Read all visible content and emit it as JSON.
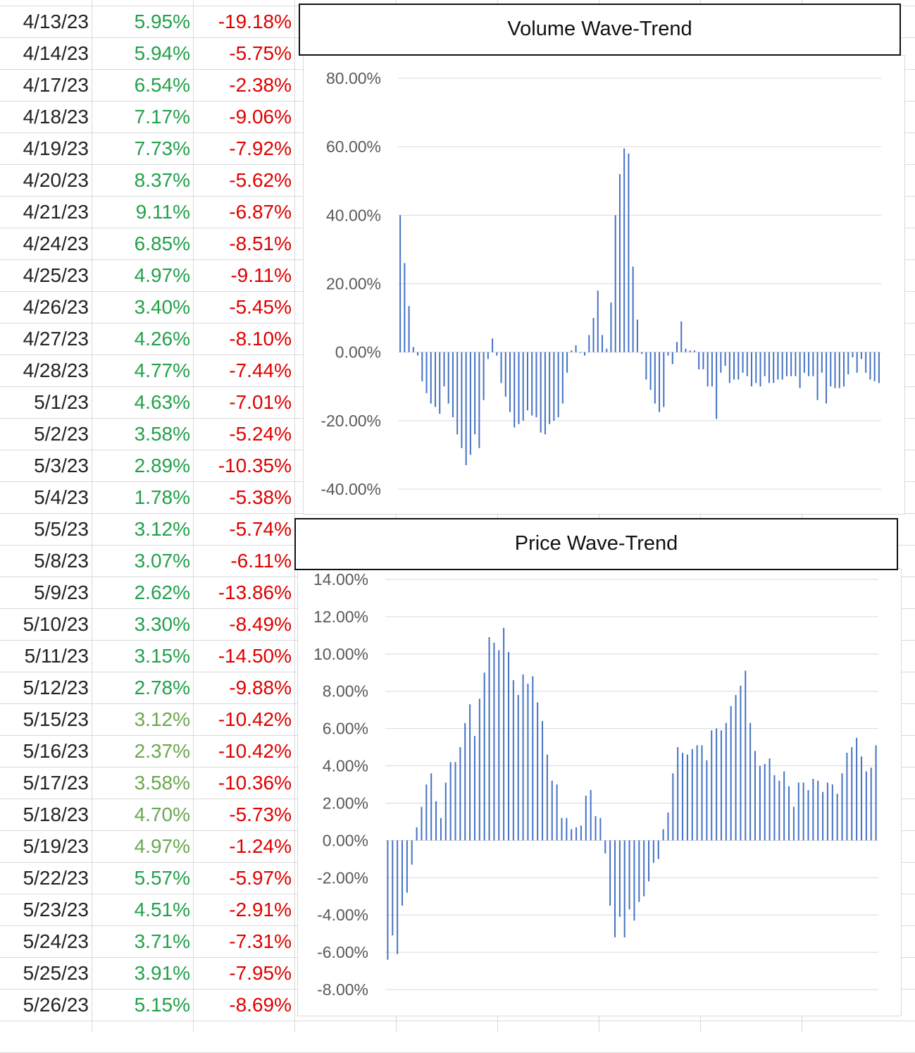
{
  "table": {
    "rows": [
      {
        "date": "4/13/23",
        "volume": "5.95%",
        "price": "-19.18%",
        "vol_color": "#22a14a"
      },
      {
        "date": "4/14/23",
        "volume": "5.94%",
        "price": "-5.75%",
        "vol_color": "#22a14a"
      },
      {
        "date": "4/17/23",
        "volume": "6.54%",
        "price": "-2.38%",
        "vol_color": "#22a14a"
      },
      {
        "date": "4/18/23",
        "volume": "7.17%",
        "price": "-9.06%",
        "vol_color": "#22a14a"
      },
      {
        "date": "4/19/23",
        "volume": "7.73%",
        "price": "-7.92%",
        "vol_color": "#22a14a"
      },
      {
        "date": "4/20/23",
        "volume": "8.37%",
        "price": "-5.62%",
        "vol_color": "#22a14a"
      },
      {
        "date": "4/21/23",
        "volume": "9.11%",
        "price": "-6.87%",
        "vol_color": "#22a14a"
      },
      {
        "date": "4/24/23",
        "volume": "6.85%",
        "price": "-8.51%",
        "vol_color": "#22a14a"
      },
      {
        "date": "4/25/23",
        "volume": "4.97%",
        "price": "-9.11%",
        "vol_color": "#22a14a"
      },
      {
        "date": "4/26/23",
        "volume": "3.40%",
        "price": "-5.45%",
        "vol_color": "#22a14a"
      },
      {
        "date": "4/27/23",
        "volume": "4.26%",
        "price": "-8.10%",
        "vol_color": "#22a14a"
      },
      {
        "date": "4/28/23",
        "volume": "4.77%",
        "price": "-7.44%",
        "vol_color": "#22a14a"
      },
      {
        "date": "5/1/23",
        "volume": "4.63%",
        "price": "-7.01%",
        "vol_color": "#22a14a"
      },
      {
        "date": "5/2/23",
        "volume": "3.58%",
        "price": "-5.24%",
        "vol_color": "#22a14a"
      },
      {
        "date": "5/3/23",
        "volume": "2.89%",
        "price": "-10.35%",
        "vol_color": "#22a14a"
      },
      {
        "date": "5/4/23",
        "volume": "1.78%",
        "price": "-5.38%",
        "vol_color": "#22a14a"
      },
      {
        "date": "5/5/23",
        "volume": "3.12%",
        "price": "-5.74%",
        "vol_color": "#22a14a"
      },
      {
        "date": "5/8/23",
        "volume": "3.07%",
        "price": "-6.11%",
        "vol_color": "#22a14a"
      },
      {
        "date": "5/9/23",
        "volume": "2.62%",
        "price": "-13.86%",
        "vol_color": "#22a14a"
      },
      {
        "date": "5/10/23",
        "volume": "3.30%",
        "price": "-8.49%",
        "vol_color": "#22a14a"
      },
      {
        "date": "5/11/23",
        "volume": "3.15%",
        "price": "-14.50%",
        "vol_color": "#22a14a"
      },
      {
        "date": "5/12/23",
        "volume": "2.78%",
        "price": "-9.88%",
        "vol_color": "#22a14a"
      },
      {
        "date": "5/15/23",
        "volume": "3.12%",
        "price": "-10.42%",
        "vol_color": "#6aa84f"
      },
      {
        "date": "5/16/23",
        "volume": "2.37%",
        "price": "-10.42%",
        "vol_color": "#6aa84f"
      },
      {
        "date": "5/17/23",
        "volume": "3.58%",
        "price": "-10.36%",
        "vol_color": "#6aa84f"
      },
      {
        "date": "5/18/23",
        "volume": "4.70%",
        "price": "-5.73%",
        "vol_color": "#6aa84f"
      },
      {
        "date": "5/19/23",
        "volume": "4.97%",
        "price": "-1.24%",
        "vol_color": "#6aa84f"
      },
      {
        "date": "5/22/23",
        "volume": "5.57%",
        "price": "-5.97%",
        "vol_color": "#22a14a"
      },
      {
        "date": "5/23/23",
        "volume": "4.51%",
        "price": "-2.91%",
        "vol_color": "#22a14a"
      },
      {
        "date": "5/24/23",
        "volume": "3.71%",
        "price": "-7.31%",
        "vol_color": "#22a14a"
      },
      {
        "date": "5/25/23",
        "volume": "3.91%",
        "price": "-7.95%",
        "vol_color": "#22a14a"
      },
      {
        "date": "5/26/23",
        "volume": "5.15%",
        "price": "-8.69%",
        "vol_color": "#22a14a"
      }
    ],
    "price_color": "#e00000"
  },
  "chart_data": [
    {
      "type": "bar",
      "title": "Volume Wave-Trend",
      "ylim": [
        -40,
        80
      ],
      "yticks": [
        "80.00%",
        "60.00%",
        "40.00%",
        "20.00%",
        "0.00%",
        "-20.00%",
        "-40.00%"
      ],
      "grid": true,
      "bar_color": "#4472c4",
      "series": [
        {
          "values": [
            40,
            26,
            13.5,
            1.5,
            -1,
            -8.5,
            -12,
            -15,
            -16,
            -18,
            -10,
            -15,
            -19,
            -24,
            -28,
            -33,
            -30,
            -24,
            -28,
            -14,
            -2,
            4,
            -1,
            -9,
            -13,
            -17.5,
            -22,
            -21,
            -20,
            -17,
            -18.5,
            -19,
            -23.5,
            -24,
            -21,
            -20,
            -19,
            -15,
            -6,
            0.5,
            2,
            0,
            -1,
            5,
            10,
            18,
            5,
            1,
            14.5,
            40,
            52,
            59.5,
            58,
            25,
            9.5,
            -0.5,
            -8,
            -11,
            -15,
            -17.5,
            -16,
            -1,
            -3.5,
            3,
            9,
            1,
            0.5,
            0.5,
            -5,
            -5,
            -10,
            -10,
            -19.5,
            -6,
            -4,
            -9,
            -8,
            -8,
            -6,
            -7,
            -10,
            -9,
            -10,
            -7,
            -9,
            -9,
            -8,
            -8,
            -7,
            -7,
            -7,
            -10.5,
            -6,
            -7,
            -7,
            -14,
            -6,
            -15,
            -10,
            -10.5,
            -10.5,
            -10,
            -6.5,
            -1.5,
            -6,
            -2,
            -6,
            -8,
            -8.5,
            -9
          ]
        }
      ]
    },
    {
      "type": "bar",
      "title": "Price Wave-Trend",
      "ylim": [
        -8,
        14
      ],
      "yticks": [
        "14.00%",
        "12.00%",
        "10.00%",
        "8.00%",
        "6.00%",
        "4.00%",
        "2.00%",
        "0.00%",
        "-2.00%",
        "-4.00%",
        "-6.00%",
        "-8.00%"
      ],
      "grid": true,
      "bar_color": "#4472c4",
      "series": [
        {
          "values": [
            -6.4,
            -5.1,
            -6.1,
            -3.5,
            -2.8,
            -1.3,
            0.7,
            1.8,
            3.0,
            3.6,
            2.1,
            1.2,
            3.1,
            4.2,
            4.2,
            5.0,
            6.3,
            7.3,
            5.6,
            7.6,
            9.0,
            10.9,
            10.6,
            10.2,
            11.4,
            10.1,
            8.6,
            7.8,
            8.9,
            8.4,
            8.8,
            7.4,
            6.4,
            4.6,
            3.2,
            3.0,
            1.2,
            1.2,
            0.6,
            0.7,
            0.8,
            2.4,
            2.7,
            1.3,
            1.2,
            -0.7,
            -3.5,
            -5.2,
            -4.1,
            -5.2,
            -3.7,
            -4.3,
            -3.3,
            -3.0,
            -2.2,
            -1.2,
            -1.0,
            0.6,
            1.5,
            3.6,
            5.0,
            4.7,
            4.6,
            4.9,
            5.1,
            5.1,
            4.3,
            5.9,
            6.0,
            5.9,
            6.3,
            7.2,
            7.8,
            8.3,
            9.1,
            6.3,
            4.8,
            4.0,
            4.1,
            4.4,
            3.5,
            3.2,
            3.7,
            2.9,
            1.8,
            3.1,
            3.1,
            2.7,
            3.3,
            3.2,
            2.6,
            3.1,
            3.0,
            2.5,
            3.6,
            4.7,
            5.0,
            5.5,
            4.5,
            3.7,
            3.9,
            5.1
          ]
        }
      ]
    }
  ]
}
